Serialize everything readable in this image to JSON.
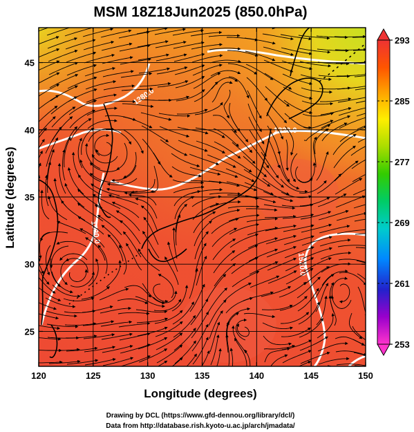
{
  "title": "MSM 18Z18Jun2025 (850.0hPa)",
  "xlabel": "Longitude (degrees)",
  "ylabel": "Latitude  (degrees)",
  "credit_line1": "Drawing by DCL (https://www.gfd-dennou.org/library/dcl/)",
  "credit_line2": "Data from http://database.rish.kyoto-u.ac.jp/arch/jmadata/",
  "map": {
    "lon_range": [
      120,
      150
    ],
    "lat_range": [
      22.4,
      47.6
    ],
    "lon_ticks": [
      "120",
      "125",
      "130",
      "135",
      "140",
      "145",
      "150"
    ],
    "lat_ticks": [
      "25",
      "30",
      "35",
      "40",
      "45"
    ],
    "grid": true
  },
  "colorbar": {
    "min": 253,
    "max": 293,
    "tick_labels": [
      "293",
      "285",
      "277",
      "269",
      "261",
      "253"
    ],
    "extend": "both",
    "colors": [
      "#ff33cc",
      "#9900cc",
      "#2222cc",
      "#0088ff",
      "#00cccc",
      "#00cc66",
      "#33cc00",
      "#aadd00",
      "#ffee00",
      "#ffaa00",
      "#ff5500",
      "#ee3333"
    ]
  },
  "contour_labels": [
    "1380.0",
    "1320.0",
    "1520.0",
    "1520.0"
  ],
  "colors": {
    "warm_field": "#ee4a33",
    "warm_mid": "#f0612c",
    "yellow_north": "#e3d61f",
    "contour": "#ffffff",
    "coast": "#000000"
  }
}
